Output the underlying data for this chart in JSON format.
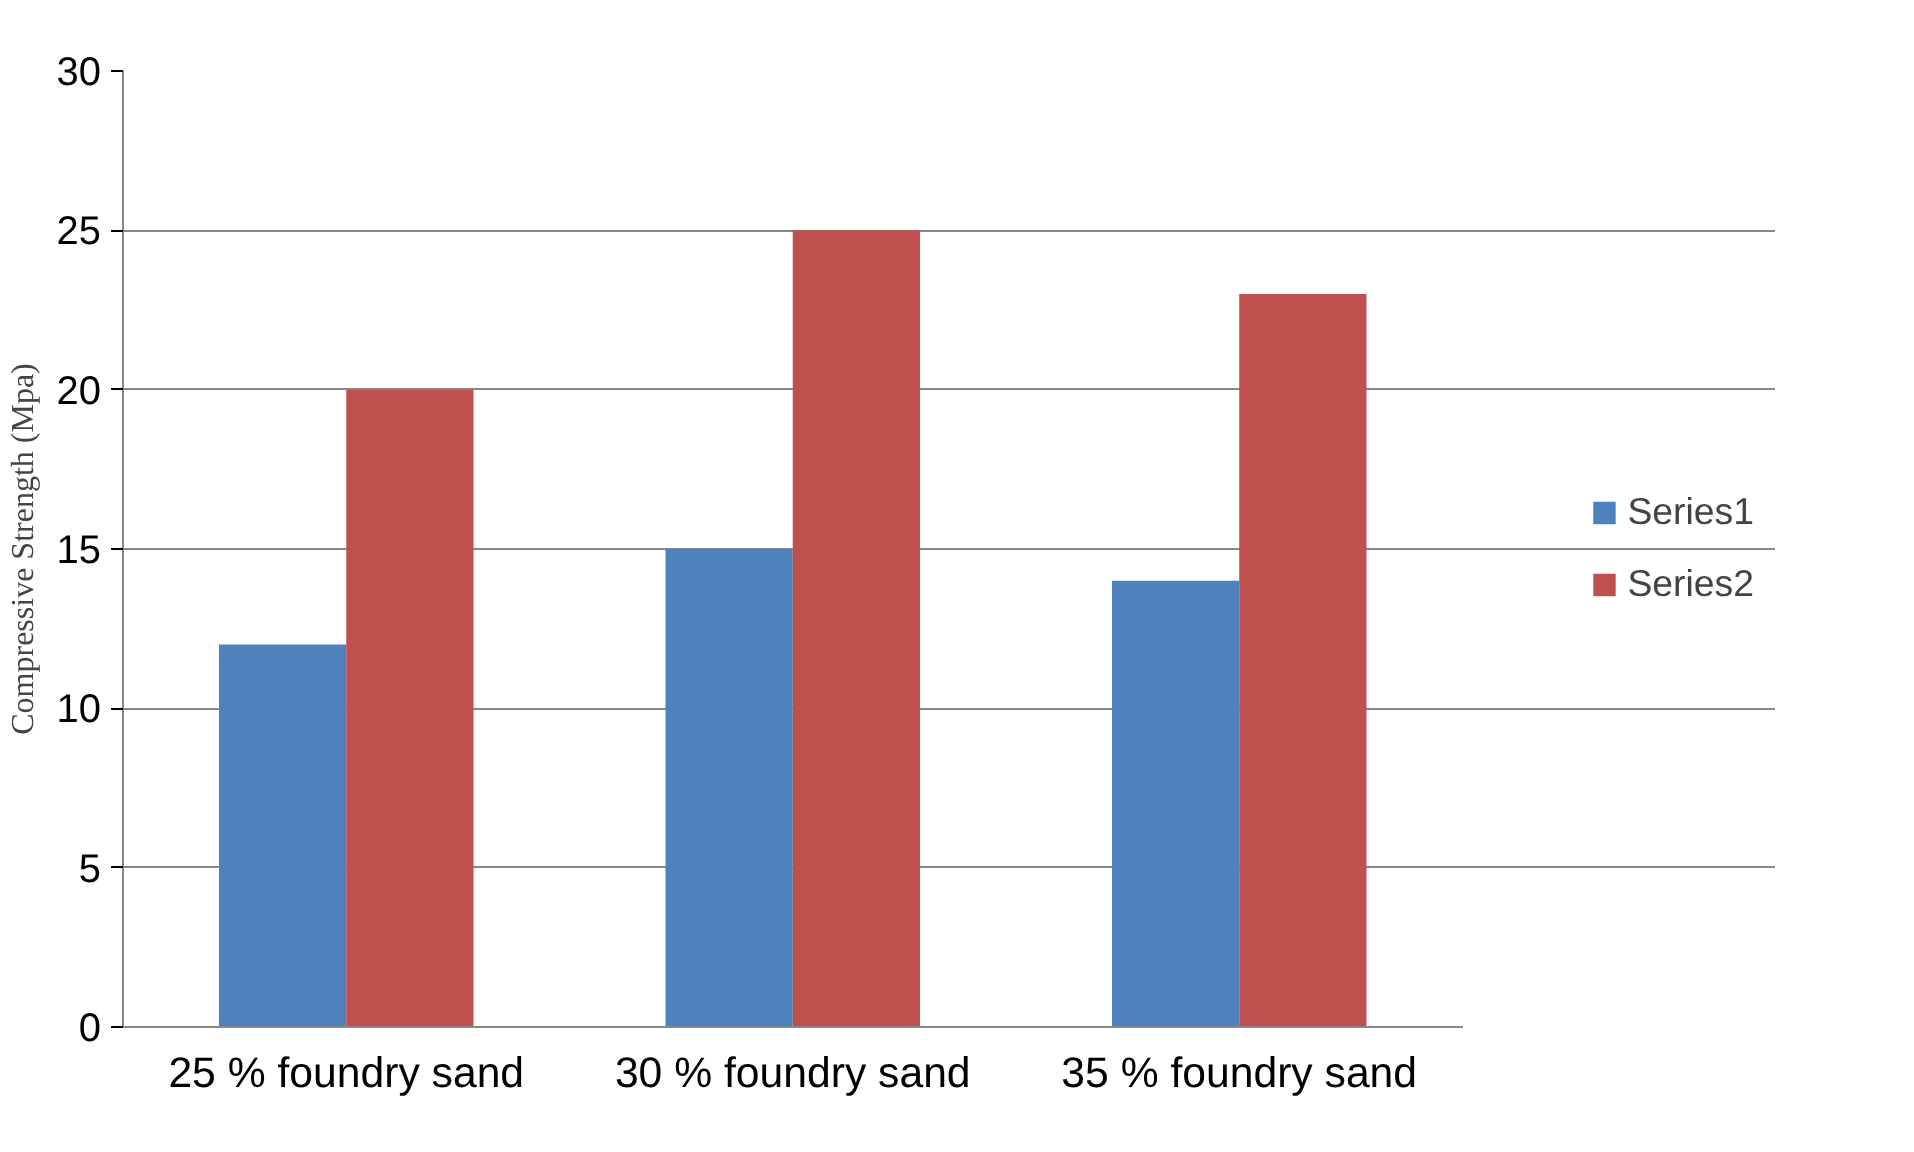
{
  "chart_data": {
    "type": "bar",
    "ylabel": "Compressive Strength (Mpa)",
    "categories": [
      "25 % foundry sand",
      "30 % foundry sand",
      "35 % foundry sand"
    ],
    "series": [
      {
        "name": "Series1",
        "color": "#4f81bd",
        "values": [
          12,
          15,
          14
        ]
      },
      {
        "name": "Series2",
        "color": "#c0504d",
        "values": [
          20,
          25,
          23
        ]
      }
    ],
    "ylim": [
      0,
      30
    ],
    "yticks": [
      0,
      5,
      10,
      15,
      20,
      25,
      30
    ],
    "grid": "y",
    "legend": "right"
  }
}
